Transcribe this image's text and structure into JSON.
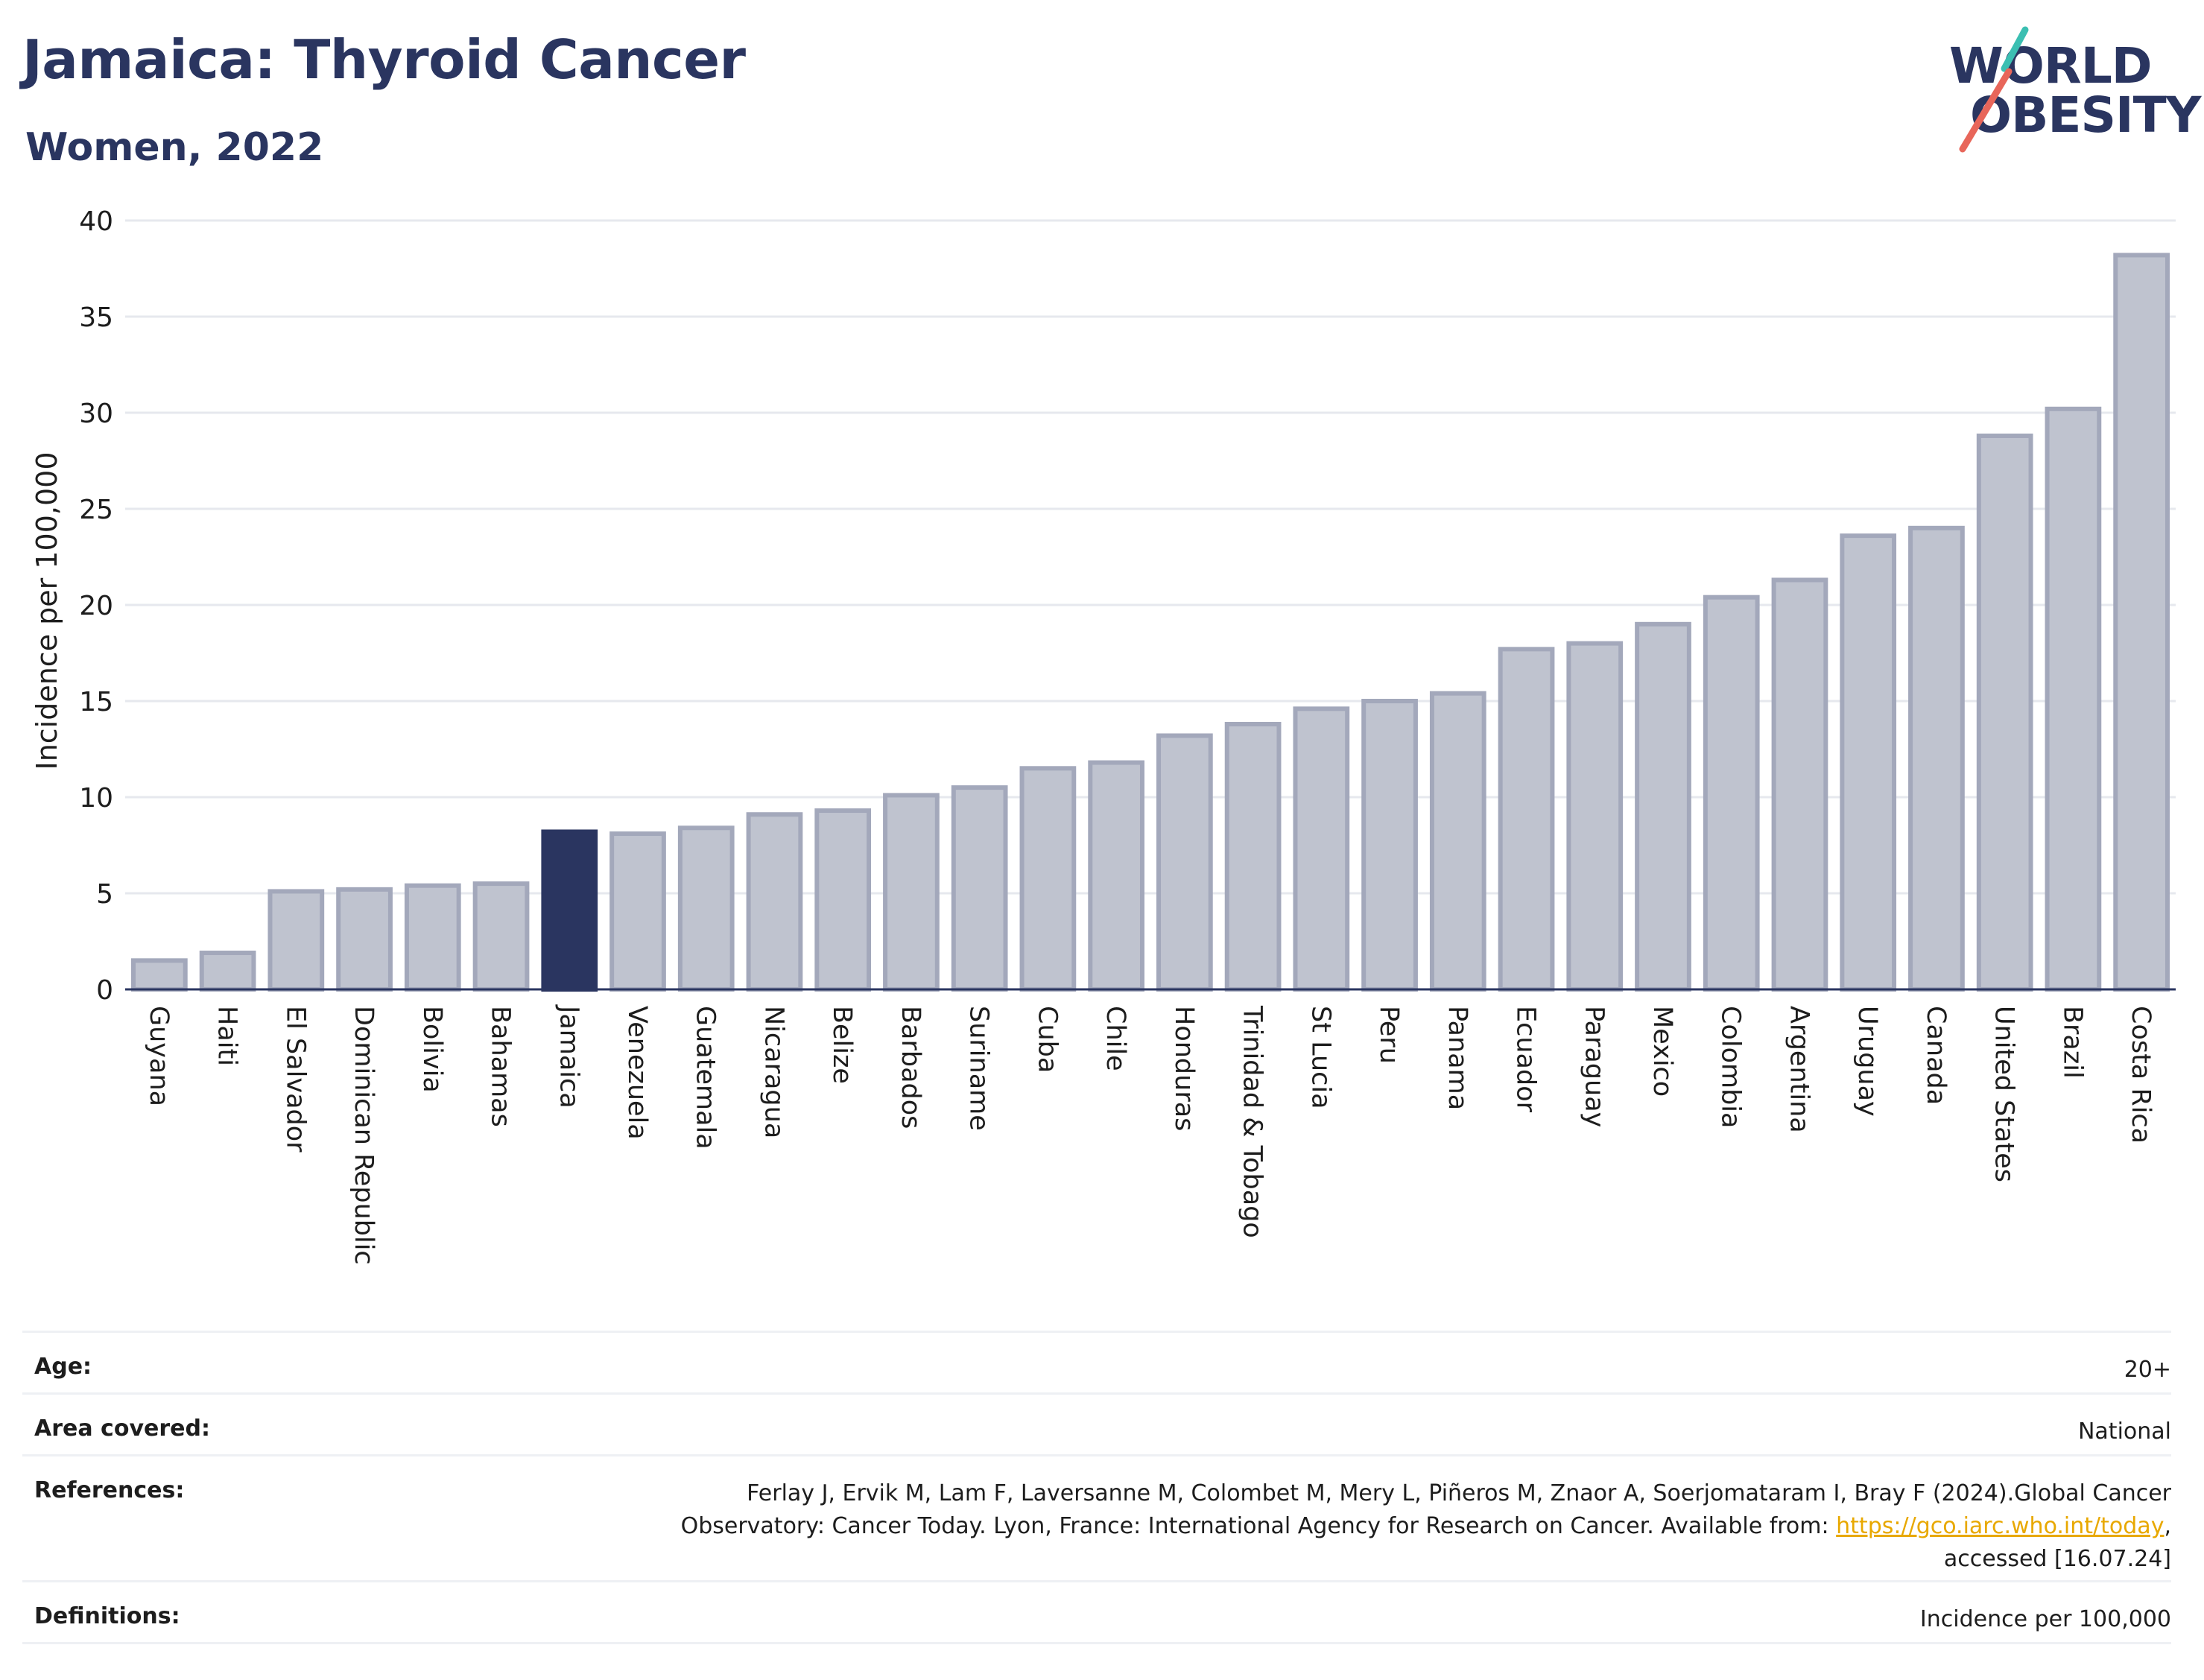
{
  "header": {
    "title": "Jamaica: Thyroid Cancer",
    "subtitle": "Women, 2022"
  },
  "logo": {
    "line1": "WORLD",
    "line2": "OBESITY",
    "accent_colors": [
      "#3bbfb2",
      "#e8665a"
    ]
  },
  "colors": {
    "highlight": "#2a3560",
    "bar_fill": "#bfc3cf",
    "bar_stroke": "#a3a8bb",
    "grid": "#e6e8ee",
    "axis": "#2a3560",
    "link": "#e8a800"
  },
  "chart_data": {
    "type": "bar",
    "ylabel": "Incidence per 100,000",
    "ylim": [
      0,
      40
    ],
    "yticks": [
      0,
      5,
      10,
      15,
      20,
      25,
      30,
      35,
      40
    ],
    "grid": true,
    "highlight": "Jamaica",
    "categories": [
      "Guyana",
      "Haiti",
      "El Salvador",
      "Dominican Republic",
      "Bolivia",
      "Bahamas",
      "Jamaica",
      "Venezuela",
      "Guatemala",
      "Nicaragua",
      "Belize",
      "Barbados",
      "Suriname",
      "Cuba",
      "Chile",
      "Honduras",
      "Trinidad & Tobago",
      "St Lucia",
      "Peru",
      "Panama",
      "Ecuador",
      "Paraguay",
      "Mexico",
      "Colombia",
      "Argentina",
      "Uruguay",
      "Canada",
      "United States",
      "Brazil",
      "Costa Rica"
    ],
    "values": [
      1.5,
      1.9,
      5.1,
      5.2,
      5.4,
      5.5,
      8.2,
      8.1,
      8.4,
      9.1,
      9.3,
      10.1,
      10.5,
      11.5,
      11.8,
      13.2,
      13.8,
      14.6,
      15.0,
      15.4,
      17.7,
      18.0,
      19.0,
      20.4,
      21.3,
      23.6,
      24.0,
      28.8,
      30.2,
      38.2
    ]
  },
  "info": {
    "age_label": "Age:",
    "age_value": "20+",
    "area_label": "Area covered:",
    "area_value": "National",
    "refs_label": "References:",
    "refs_line1": "Ferlay J, Ervik M, Lam F, Laversanne M, Colombet M, Mery L, Piñeros M, Znaor A, Soerjomataram I, Bray F (2024).Global Cancer",
    "refs_line2_pre": "Observatory: Cancer Today. Lyon, France: International Agency for Research on Cancer. Available from: ",
    "refs_link": "https://gco.iarc.who.int/today",
    "refs_line2_post": ",",
    "refs_line3": "accessed [16.07.24]",
    "defs_label": "Definitions:",
    "defs_value": "Incidence per 100,000"
  }
}
